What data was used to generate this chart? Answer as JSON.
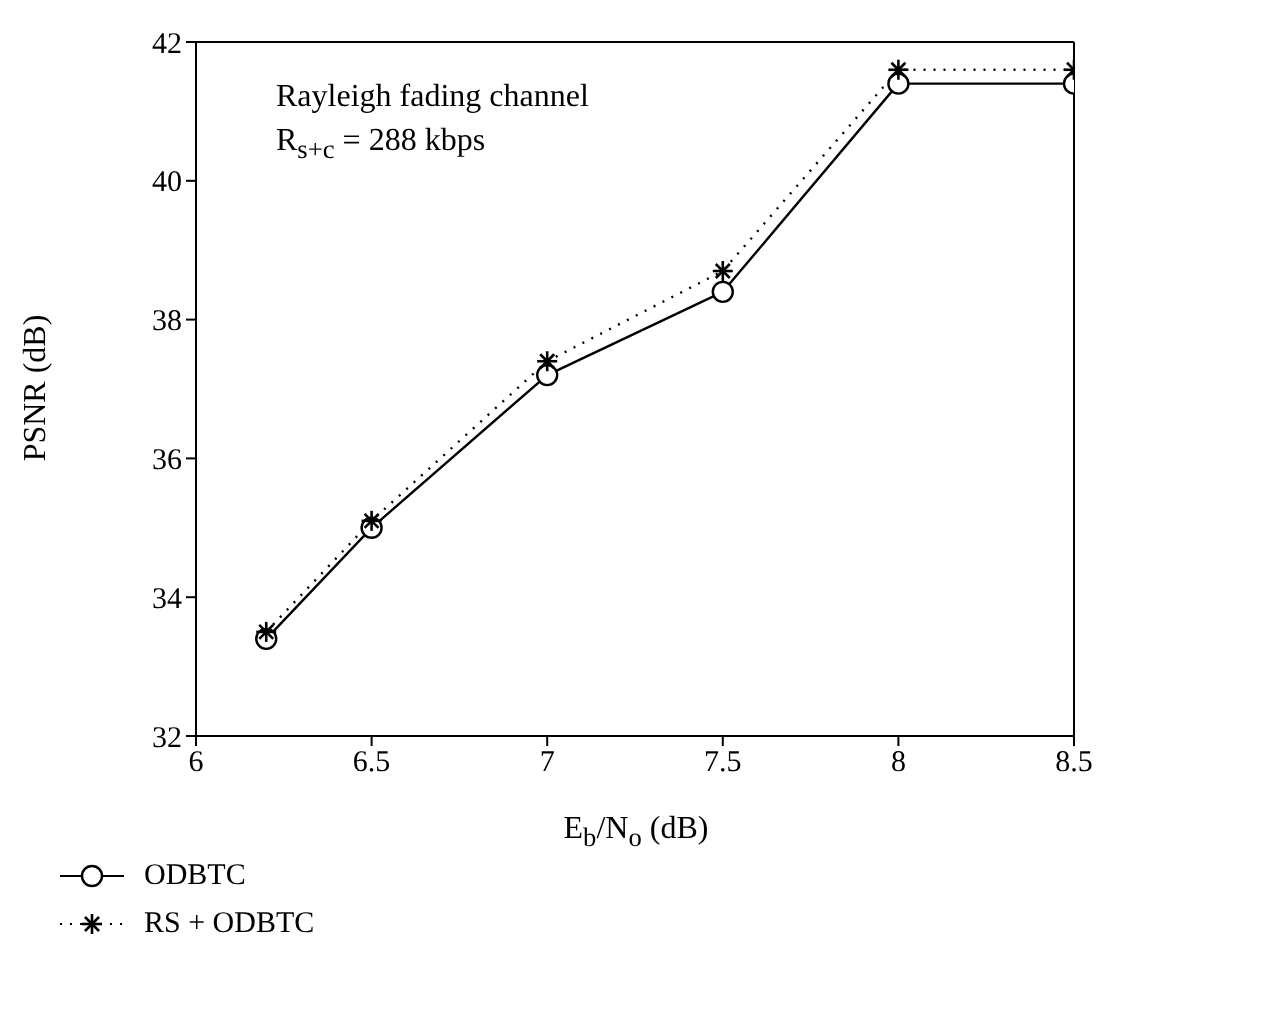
{
  "chart_data": {
    "type": "line",
    "xlabel": "E$_{b}$/N$_{o}$ (dB)",
    "ylabel": "PSNR (dB)",
    "annotations": [
      "Rayleigh fading channel",
      "R$_{s+c}$ = 288 kbps"
    ],
    "x": [
      6.2,
      6.5,
      7,
      7.5,
      8,
      8.5
    ],
    "series": [
      {
        "name": "ODBTC",
        "color": "#000000",
        "marker": "circle",
        "line_style": "solid",
        "values": [
          33.4,
          35.0,
          37.2,
          38.4,
          41.4,
          41.4
        ]
      },
      {
        "name": "RS + ODBTC",
        "color": "#000000",
        "marker": "cross",
        "line_style": "dotted",
        "values": [
          33.5,
          35.1,
          37.4,
          38.7,
          41.6,
          41.6
        ]
      }
    ],
    "xlim": [
      6,
      8.5
    ],
    "xticks": [
      6,
      6.5,
      7,
      7.5,
      8,
      8.5
    ],
    "ylim": [
      32,
      42
    ],
    "yticks": [
      32,
      34,
      36,
      38,
      40,
      42
    ],
    "grid": false,
    "legend": "bottom left"
  }
}
